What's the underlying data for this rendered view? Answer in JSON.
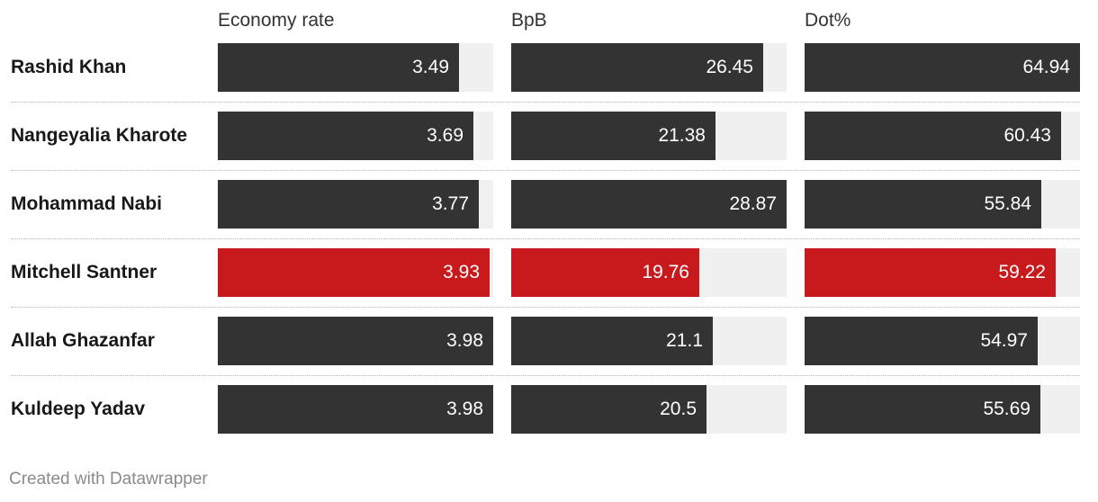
{
  "chart_data": {
    "type": "table",
    "columns": [
      "Economy rate",
      "BpB",
      "Dot%"
    ],
    "colors": {
      "bar": "#333333",
      "highlight": "#c8191d",
      "track": "#f0f0f0"
    },
    "rows": [
      {
        "name": "Rashid Khan",
        "values": [
          3.49,
          26.45,
          64.94
        ],
        "values_text": [
          "3.49",
          "26.45",
          "64.94"
        ],
        "highlight": false
      },
      {
        "name": "Nangeyalia Kharote",
        "values": [
          3.69,
          21.38,
          60.43
        ],
        "values_text": [
          "3.69",
          "21.38",
          "60.43"
        ],
        "highlight": false
      },
      {
        "name": "Mohammad Nabi",
        "values": [
          3.77,
          28.87,
          55.84
        ],
        "values_text": [
          "3.77",
          "28.87",
          "55.84"
        ],
        "highlight": false
      },
      {
        "name": "Mitchell Santner",
        "values": [
          3.93,
          19.76,
          59.22
        ],
        "values_text": [
          "3.93",
          "19.76",
          "59.22"
        ],
        "highlight": true
      },
      {
        "name": "Allah Ghazanfar",
        "values": [
          3.98,
          21.1,
          54.97
        ],
        "values_text": [
          "3.98",
          "21.1",
          "54.97"
        ],
        "highlight": false
      },
      {
        "name": "Kuldeep Yadav",
        "values": [
          3.98,
          20.5,
          55.69
        ],
        "values_text": [
          "3.98",
          "20.5",
          "55.69"
        ],
        "highlight": false
      }
    ]
  },
  "footer": "Created with Datawrapper"
}
